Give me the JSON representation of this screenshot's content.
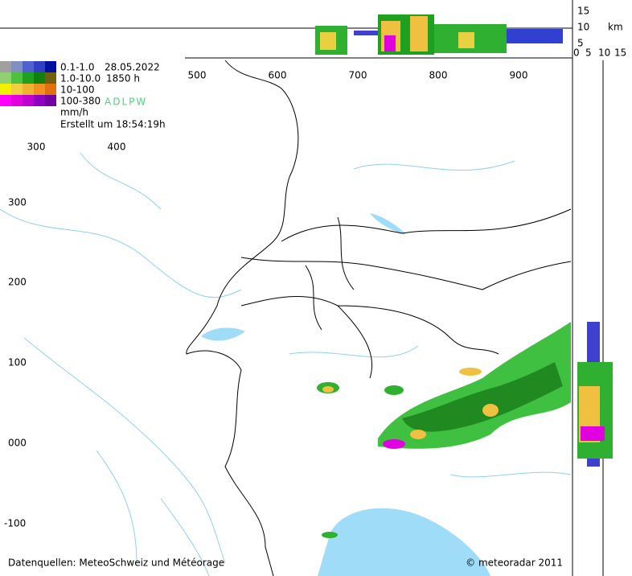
{
  "legend": {
    "classes": [
      "0.1-1.0",
      "1.0-10.0",
      "10-100",
      "100-380"
    ],
    "date": "28.05.2022",
    "altitude": "1850 h",
    "sources": "ADLPW",
    "unit": "mm/h",
    "created": "Erstellt um 18:54:19h"
  },
  "grid": {
    "x_labels_top": [
      "500",
      "600",
      "700",
      "800",
      "900"
    ],
    "x_labels_inner": [
      "300",
      "400"
    ],
    "y_labels": [
      "300",
      "200",
      "100",
      "000",
      "-100"
    ]
  },
  "profile": {
    "height_labels": [
      "15",
      "10",
      "5"
    ],
    "unit": "km",
    "width_labels": [
      "0",
      "5",
      "10",
      "15"
    ]
  },
  "footer": {
    "sources": "Datenquellen: MeteoSchweiz und Météorage",
    "copyright": "© meteoradar 2011"
  }
}
